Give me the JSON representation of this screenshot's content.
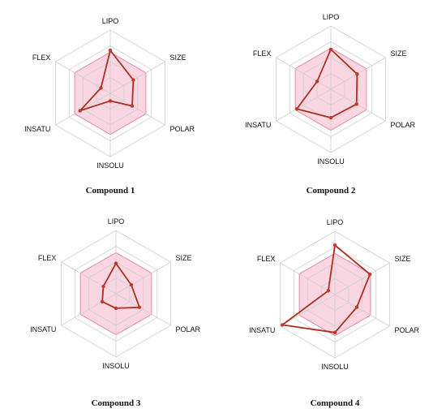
{
  "chart_data": [
    {
      "type": "radar",
      "title": "Compound 1",
      "axes": [
        "LIPO",
        "SIZE",
        "POLAR",
        "INSOLU",
        "INSATU",
        "FLEX"
      ],
      "range": [
        0,
        1
      ],
      "optimal_zone": 0.65,
      "values": [
        0.68,
        0.42,
        0.4,
        0.12,
        0.55,
        0.17
      ]
    },
    {
      "type": "radar",
      "title": "Compound 2",
      "axes": [
        "LIPO",
        "SIZE",
        "POLAR",
        "INSOLU",
        "INSATU",
        "FLEX"
      ],
      "range": [
        0,
        1
      ],
      "optimal_zone": 0.65,
      "values": [
        0.63,
        0.48,
        0.47,
        0.45,
        0.62,
        0.25
      ]
    },
    {
      "type": "radar",
      "title": "Compound 3",
      "axes": [
        "LIPO",
        "SIZE",
        "POLAR",
        "INSOLU",
        "INSATU",
        "FLEX"
      ],
      "range": [
        0,
        1
      ],
      "optimal_zone": 0.65,
      "values": [
        0.48,
        0.28,
        0.43,
        0.23,
        0.25,
        0.23
      ]
    },
    {
      "type": "radar",
      "title": "Compound 4",
      "axes": [
        "LIPO",
        "SIZE",
        "POLAR",
        "INSOLU",
        "INSATU",
        "FLEX"
      ],
      "range": [
        0,
        1
      ],
      "optimal_zone": 0.65,
      "values": [
        0.78,
        0.64,
        0.4,
        0.6,
        0.96,
        0.12
      ]
    }
  ],
  "colors": {
    "zone_fill": "#f7c8d8",
    "zone_stroke": "#e48aa8",
    "grid": "#cfcfcf",
    "line": "#a8321e",
    "marker": "#c0392b"
  }
}
